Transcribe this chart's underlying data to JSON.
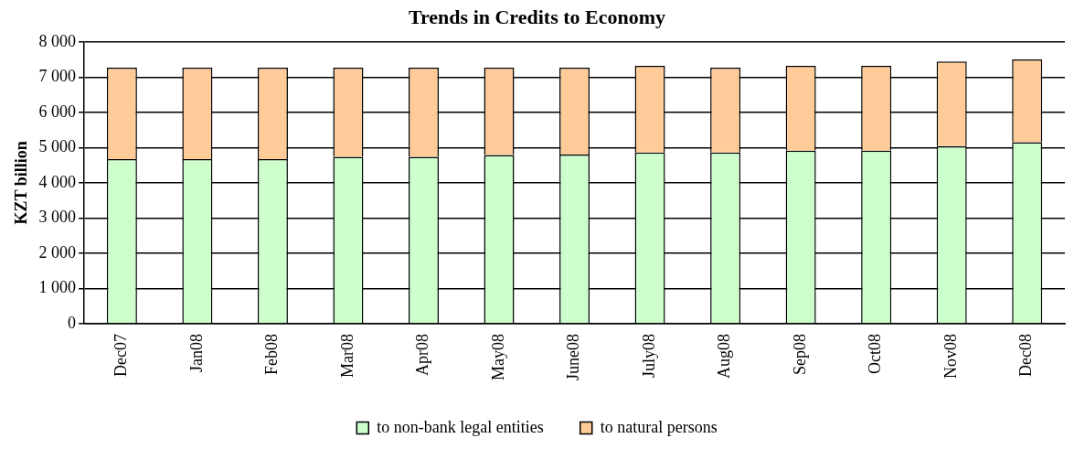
{
  "chart_data": {
    "type": "bar",
    "title": "Trends in Credits to Economy",
    "ylabel": "KZT billion",
    "categories": [
      "Dec07",
      "Jan08",
      "Feb08",
      "Mar08",
      "Apr08",
      "May08",
      "June08",
      "July08",
      "Aug08",
      "Sep08",
      "Oct08",
      "Nov08",
      "Dec08"
    ],
    "series": [
      {
        "name": "to non-bank legal entities",
        "color": "#ccffcc",
        "values": [
          4670,
          4670,
          4670,
          4740,
          4740,
          4790,
          4800,
          4860,
          4860,
          4910,
          4910,
          5040,
          5150
        ]
      },
      {
        "name": "to natural persons",
        "color": "#ffcc99",
        "values": [
          2600,
          2600,
          2600,
          2530,
          2530,
          2480,
          2470,
          2460,
          2410,
          2410,
          2410,
          2400,
          2350
        ]
      }
    ],
    "stacked": true,
    "ylim": [
      0,
      8000
    ],
    "yticks": [
      {
        "value": 0,
        "label": "0"
      },
      {
        "value": 1000,
        "label": "1 000"
      },
      {
        "value": 2000,
        "label": "2 000"
      },
      {
        "value": 3000,
        "label": "3 000"
      },
      {
        "value": 4000,
        "label": "4 000"
      },
      {
        "value": 5000,
        "label": "5 000"
      },
      {
        "value": 6000,
        "label": "6 000"
      },
      {
        "value": 7000,
        "label": "7 000"
      },
      {
        "value": 8000,
        "label": "8 000"
      }
    ],
    "grid": "y",
    "legend": "bottom"
  }
}
